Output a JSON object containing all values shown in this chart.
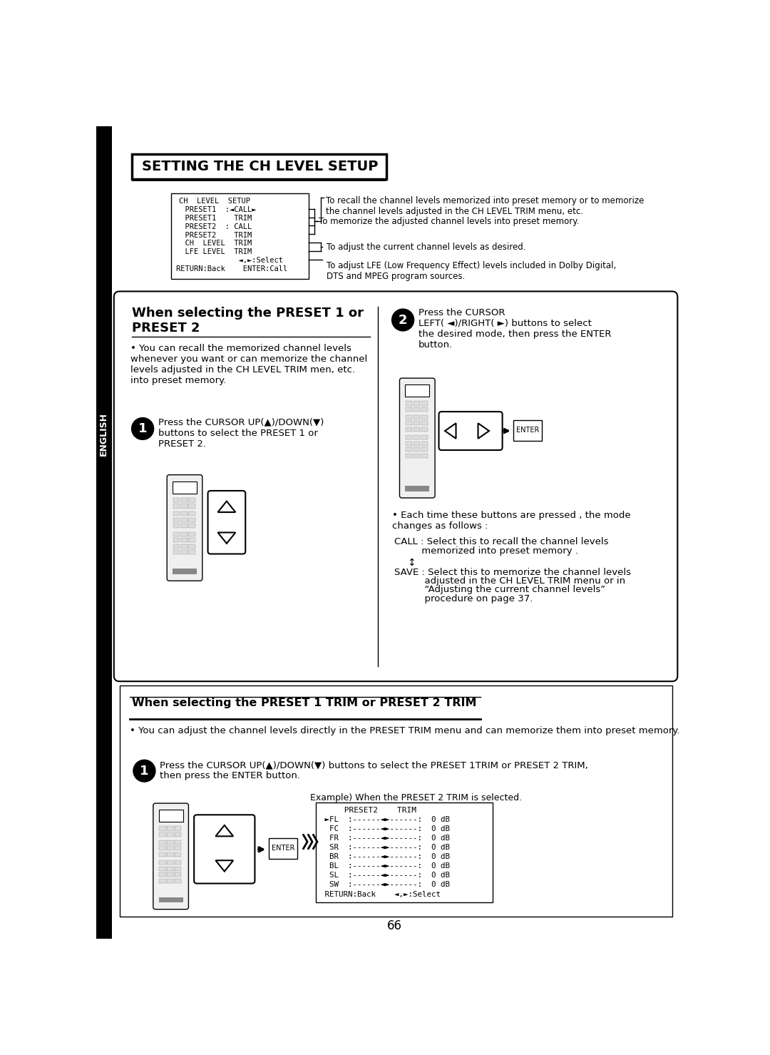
{
  "title": "SETTING THE CH LEVEL SETUP",
  "page_number": "66",
  "bg_color": "#ffffff",
  "ch_level_box": {
    "lines": [
      "CH  LEVEL  SETUP",
      "  PRESET1  :◄CALL►",
      "  PRESET1    TRIM",
      "  PRESET2  : CALL",
      "  PRESET2    TRIM",
      "  CH  LEVEL  TRIM",
      "  LFE LEVEL  TRIM",
      "              ◄,►:Select",
      "RETURN:Back    ENTER:Call"
    ],
    "annot1": "To recall the channel levels memorized into preset memory or to memorize\nthe channel levels adjusted in the CH LEVEL TRIM menu, etc.",
    "annot2": "To memorize the adjusted channel levels into preset memory.",
    "annot3": "To adjust the current channel levels as desired.",
    "annot4": "To adjust LFE (Low Frequency Effect) levels included in Dolby Digital,\nDTS and MPEG program sources."
  },
  "section1_header": "When selecting the PRESET 1 or\nPRESET 2",
  "section1_bullet": "You can recall the memorized channel levels\nwhenever you want or can memorize the channel\nlevels adjusted in the CH LEVEL TRIM men, etc.\ninto preset memory.",
  "step1_text": "Press the CURSOR UP(▲)/DOWN(▼)\nbuttons to select the PRESET 1 or\nPRESET 2.",
  "step2_text": "Press the CURSOR\nLEFT( ◄)/RIGHT( ►) buttons to select\nthe desired mode, then press the ENTER\nbutton.",
  "bullet2": "Each time these buttons are pressed , the mode\nchanges as follows :",
  "call_line1": "CALL : Select this to recall the channel levels",
  "call_line2": "         memorized into preset memory .",
  "updown_arrow": "↕",
  "save_line1": "SAVE : Select this to memorize the channel levels",
  "save_line2": "          adjusted in the CH LEVEL TRIM menu or in",
  "save_line3": "          “Adjusting the current channel levels”",
  "save_line4": "          procedure on page 37.",
  "section2_header": "When selecting the PRESET 1 TRIM or PRESET 2 TRIM",
  "section2_bullet": "You can adjust the channel levels directly in the PRESET TRIM menu and can memorize them into preset memory.",
  "section2_step1": "Press the CURSOR UP(▲)/DOWN(▼) buttons to select the PRESET 1TRIM or PRESET 2 TRIM,\nthen press the ENTER button.",
  "example_text": "Example) When the PRESET 2 TRIM is selected.",
  "preset2_trim_lines": [
    "     PRESET2    TRIM",
    " ►FL  :------◄►------:  0 dB",
    "  FC  :------◄►------:  0 dB",
    "  FR  :------◄►------:  0 dB",
    "  SR  :------◄►------:  0 dB",
    "  BR  :------◄►------:  0 dB",
    "  BL  :------◄►------:  0 dB",
    "  SL  :------◄►------:  0 dB",
    "  SW  :------◄►------:  0 dB",
    " RETURN:Back    ◄,►:Select"
  ]
}
